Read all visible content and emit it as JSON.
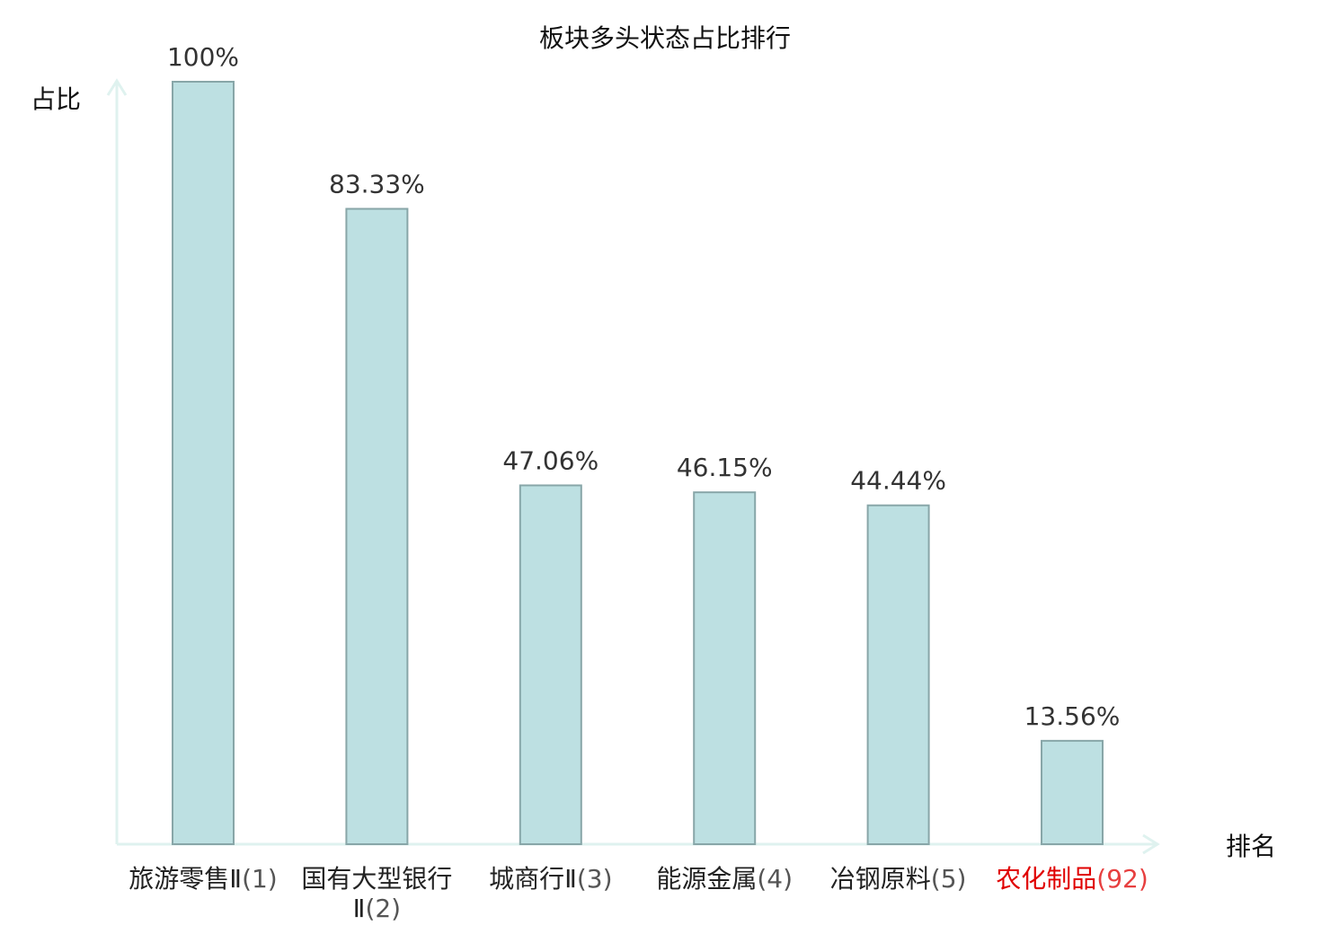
{
  "chart_data": {
    "type": "bar",
    "title": "板块多头状态占比排行",
    "y_label": "占比",
    "x_label": "排名",
    "categories": [
      "旅游零售Ⅱ",
      "国有大型银行Ⅱ",
      "城商行Ⅱ",
      "能源金属",
      "冶钢原料",
      "农化制品"
    ],
    "ranks": [
      "(1)",
      "(2)",
      "(3)",
      "(4)",
      "(5)",
      "(92)"
    ],
    "values": [
      100,
      83.33,
      47.06,
      46.15,
      44.44,
      13.56
    ],
    "value_labels": [
      "100%",
      "83.33%",
      "47.06%",
      "46.15%",
      "44.44%",
      "13.56%"
    ],
    "color": "#bde0e2",
    "edge_color": "#88a6a8",
    "highlight_index": 5,
    "highlight_color": "#e00000",
    "ylim": [
      0,
      100
    ],
    "grid": false
  }
}
